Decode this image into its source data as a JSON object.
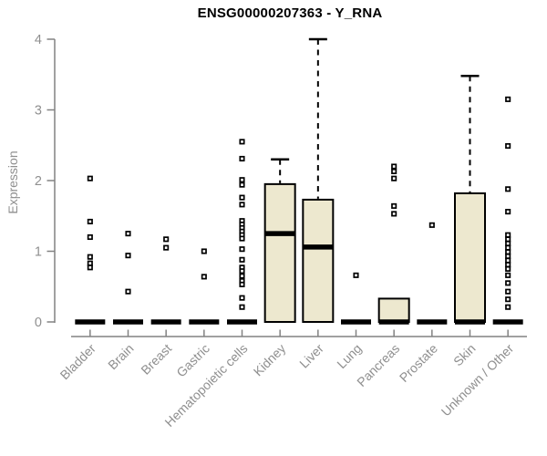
{
  "chart_data": {
    "type": "boxplot",
    "title": "ENSG00000207363 - Y_RNA",
    "ylabel": "Expression",
    "xlabel": "",
    "ylim": [
      0,
      4
    ],
    "yticks": [
      0,
      1,
      2,
      3,
      4
    ],
    "grid": false,
    "legend": "none",
    "colors": {
      "box_fill": "#EDE8CF",
      "box_border": "#000000",
      "median": "#000000",
      "whisker": "#000000",
      "outlier_stroke": "#000000",
      "outlier_fill": "#ffffff",
      "axis": "#828282",
      "tick_label": "#8f8f8f",
      "title": "#000000",
      "background": "#ffffff"
    },
    "categories": [
      "Bladder",
      "Brain",
      "Breast",
      "Gastric",
      "Hematopoietic cells",
      "Kidney",
      "Liver",
      "Lung",
      "Pancreas",
      "Prostate",
      "Skin",
      "Unknown / Other"
    ],
    "series": [
      {
        "name": "Bladder",
        "q1": 0,
        "median": 0,
        "q3": 0,
        "whisker_low": 0,
        "whisker_high": 0,
        "outliers": [
          2.03,
          1.42,
          1.2,
          0.92,
          0.83,
          0.77
        ]
      },
      {
        "name": "Brain",
        "q1": 0,
        "median": 0,
        "q3": 0,
        "whisker_low": 0,
        "whisker_high": 0,
        "outliers": [
          1.25,
          0.94,
          0.43
        ]
      },
      {
        "name": "Breast",
        "q1": 0,
        "median": 0,
        "q3": 0,
        "whisker_low": 0,
        "whisker_high": 0,
        "outliers": [
          1.17,
          1.05
        ]
      },
      {
        "name": "Gastric",
        "q1": 0,
        "median": 0,
        "q3": 0,
        "whisker_low": 0,
        "whisker_high": 0,
        "outliers": [
          1.0,
          0.64
        ]
      },
      {
        "name": "Hematopoietic cells",
        "q1": 0,
        "median": 0,
        "q3": 0,
        "whisker_low": 0,
        "whisker_high": 0,
        "outliers": [
          2.55,
          2.31,
          2.01,
          1.94,
          1.76,
          1.66,
          1.43,
          1.38,
          1.33,
          1.28,
          1.23,
          1.18,
          1.03,
          0.88,
          0.77,
          0.72,
          0.65,
          0.58,
          0.53,
          0.34,
          0.21
        ]
      },
      {
        "name": "Kidney",
        "q1": 0,
        "median": 1.25,
        "q3": 1.95,
        "whisker_low": 0,
        "whisker_high": 2.3,
        "outliers": []
      },
      {
        "name": "Liver",
        "q1": 0,
        "median": 1.06,
        "q3": 1.73,
        "whisker_low": 0,
        "whisker_high": 4.0,
        "outliers": []
      },
      {
        "name": "Lung",
        "q1": 0,
        "median": 0,
        "q3": 0,
        "whisker_low": 0,
        "whisker_high": 0,
        "outliers": [
          0.66
        ]
      },
      {
        "name": "Pancreas",
        "q1": 0,
        "median": 0,
        "q3": 0.33,
        "whisker_low": 0,
        "whisker_high": 0.33,
        "outliers": [
          2.2,
          2.13,
          2.03,
          1.64,
          1.53
        ]
      },
      {
        "name": "Prostate",
        "q1": 0,
        "median": 0,
        "q3": 0,
        "whisker_low": 0,
        "whisker_high": 0,
        "outliers": [
          1.37
        ]
      },
      {
        "name": "Skin",
        "q1": 0,
        "median": 0,
        "q3": 1.82,
        "whisker_low": 0,
        "whisker_high": 3.48,
        "outliers": []
      },
      {
        "name": "Unknown / Other",
        "q1": 0,
        "median": 0,
        "q3": 0,
        "whisker_low": 0,
        "whisker_high": 0,
        "outliers": [
          3.15,
          2.49,
          1.88,
          1.56,
          1.23,
          1.17,
          1.11,
          1.05,
          0.99,
          0.93,
          0.87,
          0.81,
          0.75,
          0.66,
          0.55,
          0.43,
          0.32,
          0.21
        ]
      }
    ]
  }
}
